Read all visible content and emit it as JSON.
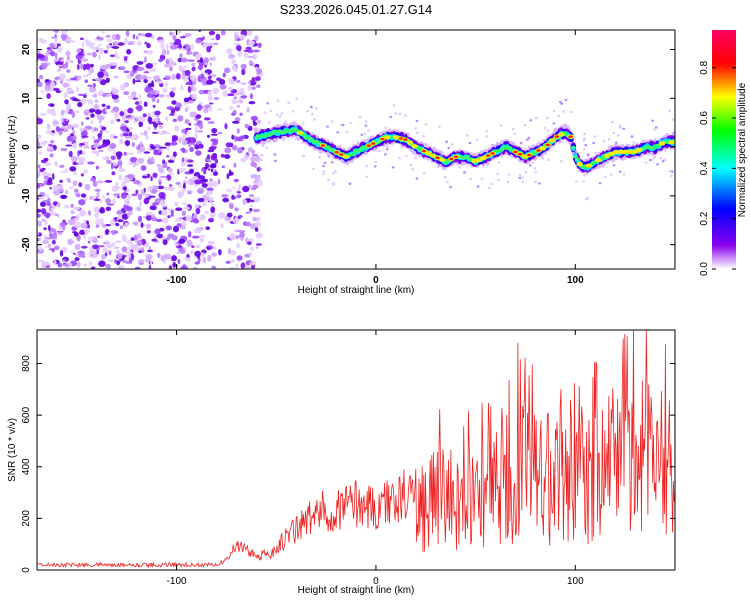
{
  "title": "S233.2026.045.01.27.G14",
  "chart_data": [
    {
      "type": "heatmap",
      "name": "spectrogram",
      "xlabel": "Height of straight line (km)",
      "ylabel": "Frequency (Hz)",
      "xlim": [
        -170,
        150
      ],
      "ylim": [
        -25,
        24
      ],
      "x_ticks": [
        -100,
        0,
        100
      ],
      "x_tick_labels": [
        "-100",
        "0",
        "100"
      ],
      "y_ticks": [
        20,
        10,
        0,
        -10,
        -20
      ],
      "y_tick_labels": [
        "20",
        "10",
        "0",
        "-10",
        "-20"
      ],
      "ridge_x": [
        -60,
        -50,
        -40,
        -35,
        -30,
        -25,
        -20,
        -15,
        -10,
        -5,
        0,
        5,
        10,
        15,
        20,
        25,
        30,
        35,
        40,
        45,
        50,
        55,
        60,
        65,
        70,
        75,
        80,
        85,
        90,
        95,
        98,
        100,
        103,
        106,
        110,
        115,
        120,
        125,
        130,
        135,
        140,
        145,
        150
      ],
      "ridge_y": [
        2,
        3,
        3.5,
        2,
        1,
        0,
        -1,
        -2,
        -1,
        0,
        1,
        2,
        2,
        1.5,
        0,
        -1,
        -2,
        -3,
        -2,
        -2,
        -3,
        -2,
        -1,
        0,
        -1,
        -2,
        -1,
        0,
        2,
        3,
        2,
        -2,
        -4,
        -4,
        -3,
        -2,
        -1,
        -1,
        -1,
        0,
        0,
        1,
        1
      ],
      "colorbar": {
        "label": "Normalized spectral amplitude",
        "range": [
          0,
          0.95
        ],
        "ticks": [
          0.0,
          0.2,
          0.4,
          0.6,
          0.8
        ],
        "tick_labels": [
          "0.0",
          "0.2",
          "0.4",
          "0.6",
          "0.8"
        ],
        "colors": [
          "#ffffff",
          "#8800ee",
          "#0000ff",
          "#00ffff",
          "#00ff00",
          "#ffff00",
          "#ff0000",
          "#ff0066"
        ]
      }
    },
    {
      "type": "line",
      "name": "snr",
      "xlabel": "Height of straight line (km)",
      "ylabel": "SNR (10 * v/v)",
      "xlim": [
        -170,
        150
      ],
      "ylim": [
        0,
        930
      ],
      "x_ticks": [
        -100,
        0,
        100
      ],
      "x_tick_labels": [
        "-100",
        "0",
        "100"
      ],
      "y_ticks": [
        0,
        200,
        400,
        600,
        800
      ],
      "y_tick_labels": [
        "0",
        "200",
        "400",
        "600",
        "800"
      ],
      "line_color": "#ee2222",
      "envelope_x": [
        -170,
        -80,
        -75,
        -70,
        -65,
        -60,
        -55,
        -50,
        -40,
        -30,
        -20,
        -10,
        0,
        10,
        20,
        30,
        35,
        40,
        50,
        60,
        70,
        75,
        80,
        90,
        100,
        110,
        120,
        130,
        140,
        150
      ],
      "envelope_y": [
        20,
        25,
        50,
        130,
        100,
        70,
        80,
        120,
        220,
        300,
        330,
        360,
        330,
        380,
        430,
        480,
        560,
        450,
        470,
        560,
        650,
        780,
        600,
        560,
        540,
        680,
        720,
        760,
        700,
        700
      ]
    }
  ]
}
